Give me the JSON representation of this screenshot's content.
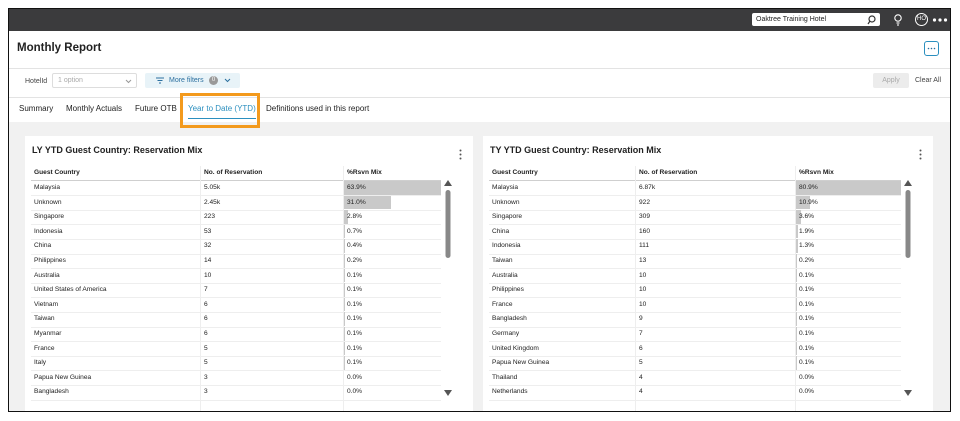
{
  "top_bar": {
    "search_value": "Oaktree Training Hotel",
    "avatar": "HO"
  },
  "header": {
    "title": "Monthly Report"
  },
  "filters": {
    "hotel_label": "HotelId",
    "hotel_placeholder": "1 option",
    "more_filters": "More filters",
    "more_filters_count": 0,
    "apply": "Apply",
    "clear_all": "Clear All"
  },
  "tabs": [
    "Summary",
    "Monthly Actuals",
    "Future OTB",
    "Year to Date (YTD)",
    "Definitions used in this report"
  ],
  "active_tab": 3,
  "panels": [
    {
      "title": "LY YTD Guest Country: Reservation Mix",
      "columns": [
        "Guest Country",
        "No. of Reservation",
        "%Rsvn Mix"
      ],
      "rows": [
        [
          "Malaysia",
          "5.05k",
          "63.9%"
        ],
        [
          "Unknown",
          "2.45k",
          "31.0%"
        ],
        [
          "Singapore",
          223,
          "2.8%"
        ],
        [
          "Indonesia",
          53,
          "0.7%"
        ],
        [
          "China",
          32,
          "0.4%"
        ],
        [
          "Philippines",
          14,
          "0.2%"
        ],
        [
          "Australia",
          10,
          "0.1%"
        ],
        [
          "United States of America",
          7,
          "0.1%"
        ],
        [
          "Vietnam",
          6,
          "0.1%"
        ],
        [
          "Taiwan",
          6,
          "0.1%"
        ],
        [
          "Myanmar",
          6,
          "0.1%"
        ],
        [
          "France",
          5,
          "0.1%"
        ],
        [
          "Italy",
          5,
          "0.1%"
        ],
        [
          "Papua New Guinea",
          3,
          "0.0%"
        ],
        [
          "Bangladesh",
          3,
          "0.0%"
        ]
      ]
    },
    {
      "title": "TY YTD Guest Country: Reservation Mix",
      "columns": [
        "Guest Country",
        "No. of Reservation",
        "%Rsvn Mix"
      ],
      "rows": [
        [
          "Malaysia",
          "6.87k",
          "80.9%"
        ],
        [
          "Unknown",
          922,
          "10.9%"
        ],
        [
          "Singapore",
          309,
          "3.6%"
        ],
        [
          "China",
          160,
          "1.9%"
        ],
        [
          "Indonesia",
          111,
          "1.3%"
        ],
        [
          "Taiwan",
          13,
          "0.2%"
        ],
        [
          "Australia",
          10,
          "0.1%"
        ],
        [
          "Philippines",
          10,
          "0.1%"
        ],
        [
          "France",
          10,
          "0.1%"
        ],
        [
          "Bangladesh",
          9,
          "0.1%"
        ],
        [
          "Germany",
          7,
          "0.1%"
        ],
        [
          "United Kingdom",
          6,
          "0.1%"
        ],
        [
          "Papua New Guinea",
          5,
          "0.1%"
        ],
        [
          "Thailand",
          4,
          "0.0%"
        ],
        [
          "Netherlands",
          4,
          "0.0%"
        ]
      ]
    }
  ]
}
